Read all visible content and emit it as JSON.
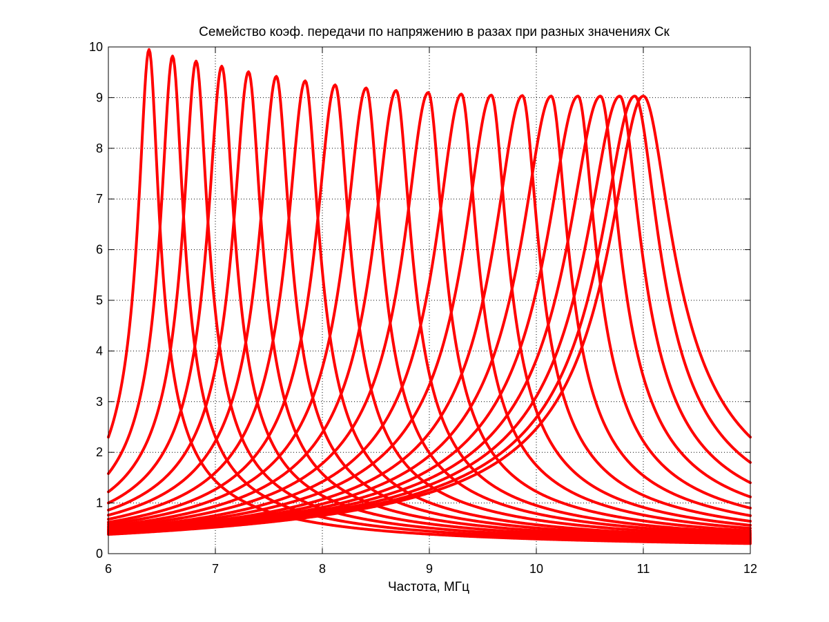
{
  "chart_data": {
    "type": "line",
    "title": "Семейство коэф. передачи по напряжению в разах при разных значениях Ск",
    "xlabel": "Частота, МГц",
    "ylabel": "",
    "xlim": [
      6,
      12
    ],
    "ylim": [
      0,
      10
    ],
    "x_ticks": [
      "6",
      "7",
      "8",
      "9",
      "10",
      "11",
      "12"
    ],
    "y_ticks": [
      "0",
      "1",
      "2",
      "3",
      "4",
      "5",
      "6",
      "7",
      "8",
      "9",
      "10"
    ],
    "grid": true,
    "line_color": "#ff0000",
    "series": [
      {
        "f0": 6.38,
        "peak": 9.95,
        "endL": 2.3,
        "endR": 0.2
      },
      {
        "f0": 6.6,
        "peak": 9.82,
        "endL": 1.58,
        "endR": 0.22
      },
      {
        "f0": 6.82,
        "peak": 9.72,
        "endL": 1.22,
        "endR": 0.24
      },
      {
        "f0": 7.06,
        "peak": 9.62,
        "endL": 1.0,
        "endR": 0.26
      },
      {
        "f0": 7.31,
        "peak": 9.51,
        "endL": 0.86,
        "endR": 0.28
      },
      {
        "f0": 7.57,
        "peak": 9.42,
        "endL": 0.76,
        "endR": 0.3
      },
      {
        "f0": 7.84,
        "peak": 9.33,
        "endL": 0.68,
        "endR": 0.32
      },
      {
        "f0": 8.12,
        "peak": 9.25,
        "endL": 0.62,
        "endR": 0.35
      },
      {
        "f0": 8.41,
        "peak": 9.19,
        "endL": 0.58,
        "endR": 0.38
      },
      {
        "f0": 8.69,
        "peak": 9.14,
        "endL": 0.54,
        "endR": 0.41
      },
      {
        "f0": 8.99,
        "peak": 9.1,
        "endL": 0.51,
        "endR": 0.45
      },
      {
        "f0": 9.3,
        "peak": 9.07,
        "endL": 0.48,
        "endR": 0.5
      },
      {
        "f0": 9.58,
        "peak": 9.05,
        "endL": 0.46,
        "endR": 0.56
      },
      {
        "f0": 9.87,
        "peak": 9.04,
        "endL": 0.44,
        "endR": 0.64
      },
      {
        "f0": 10.14,
        "peak": 9.03,
        "endL": 0.43,
        "endR": 0.75
      },
      {
        "f0": 10.39,
        "peak": 9.03,
        "endL": 0.42,
        "endR": 0.9
      },
      {
        "f0": 10.6,
        "peak": 9.03,
        "endL": 0.41,
        "endR": 1.12
      },
      {
        "f0": 10.78,
        "peak": 9.03,
        "endL": 0.4,
        "endR": 1.4
      },
      {
        "f0": 10.92,
        "peak": 9.03,
        "endL": 0.39,
        "endR": 1.8
      },
      {
        "f0": 11.0,
        "peak": 9.03,
        "endL": 0.38,
        "endR": 2.3
      }
    ]
  }
}
